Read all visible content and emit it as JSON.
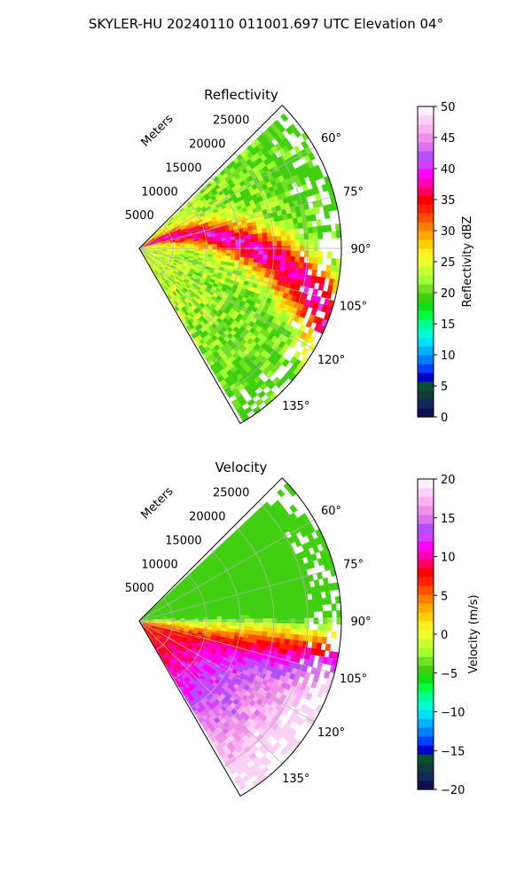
{
  "suptitle": "SKYLER-HU  20240110  011001.697 UTC Elevation 04°",
  "chart_data": [
    {
      "type": "heatmap",
      "projection": "polar-sector",
      "title": "Reflectivity",
      "theta_range_deg": [
        45,
        150
      ],
      "theta_ticks": [
        60,
        75,
        90,
        105,
        120,
        135
      ],
      "theta_tick_labels": [
        "60°",
        "75°",
        "90°",
        "105°",
        "120°",
        "135°"
      ],
      "r_range": [
        0,
        30000
      ],
      "r_label": "Meters",
      "r_ticks": [
        5000,
        10000,
        15000,
        20000,
        25000
      ],
      "r_tick_labels": [
        "5000",
        "10000",
        "15000",
        "20000",
        "25000"
      ],
      "grid": true,
      "colorbar": {
        "label": "Reflectivity dBZ",
        "range": [
          0,
          50
        ],
        "ticks": [
          0,
          5,
          10,
          15,
          20,
          25,
          30,
          35,
          40,
          45,
          50
        ],
        "tick_labels": [
          "0",
          "5",
          "10",
          "15",
          "20",
          "25",
          "30",
          "35",
          "40",
          "45",
          "50"
        ],
        "colors": [
          "#0a1050",
          "#10285a",
          "#123c3c",
          "#0a5032",
          "#0000cc",
          "#0040ff",
          "#0080ff",
          "#00b0ff",
          "#00e0ff",
          "#00ffd0",
          "#00ff90",
          "#00ff40",
          "#10e010",
          "#40d010",
          "#70e020",
          "#a0ff30",
          "#c8ff30",
          "#eeff30",
          "#fff020",
          "#ffd000",
          "#ffa800",
          "#ff8000",
          "#ff5000",
          "#ff2000",
          "#ff0000",
          "#ff0060",
          "#ff00c0",
          "#ff00ff",
          "#d040ff",
          "#b050ff",
          "#e070f0",
          "#f090e8",
          "#f8b0f0",
          "#fcd0f4",
          "#fff0fc"
        ]
      }
    },
    {
      "type": "heatmap",
      "projection": "polar-sector",
      "title": "Velocity",
      "theta_range_deg": [
        45,
        150
      ],
      "theta_ticks": [
        60,
        75,
        90,
        105,
        120,
        135
      ],
      "theta_tick_labels": [
        "60°",
        "75°",
        "90°",
        "105°",
        "120°",
        "135°"
      ],
      "r_range": [
        0,
        30000
      ],
      "r_label": "Meters",
      "r_ticks": [
        5000,
        10000,
        15000,
        20000,
        25000
      ],
      "r_tick_labels": [
        "5000",
        "10000",
        "15000",
        "20000",
        "25000"
      ],
      "grid": true,
      "colorbar": {
        "label": "Velocity (m/s)",
        "range": [
          -20,
          20
        ],
        "ticks": [
          -20,
          -15,
          -10,
          -5,
          0,
          5,
          10,
          15,
          20
        ],
        "tick_labels": [
          "−20",
          "−15",
          "−10",
          "−5",
          "0",
          "5",
          "10",
          "15",
          "20"
        ],
        "colors": [
          "#0a1050",
          "#10285a",
          "#123c3c",
          "#0a5032",
          "#0000cc",
          "#0040ff",
          "#0080ff",
          "#00b0ff",
          "#00e0ff",
          "#00ffd0",
          "#00ff90",
          "#00ff40",
          "#10e010",
          "#40d010",
          "#70e020",
          "#a0ff30",
          "#c8ff30",
          "#eeff30",
          "#fff020",
          "#ffd000",
          "#ffa800",
          "#ff8000",
          "#ff5000",
          "#ff2000",
          "#ff0000",
          "#ff0060",
          "#ff00c0",
          "#ff00ff",
          "#d040ff",
          "#b050ff",
          "#e070f0",
          "#f090e8",
          "#f8b0f0",
          "#fcd0f4",
          "#fff0fc"
        ]
      }
    }
  ]
}
